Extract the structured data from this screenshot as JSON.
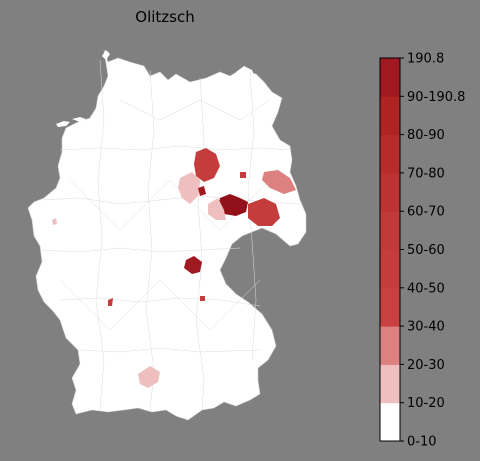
{
  "title": "Olitzsch",
  "legend": {
    "labels": [
      "0-10",
      "10-20",
      "20-30",
      "30-40",
      "40-50",
      "50-60",
      "60-70",
      "70-80",
      "80-90",
      "90-190.8",
      "190.8"
    ],
    "colors": [
      "#ffffff",
      "#efbfbf",
      "#dc8080",
      "#c84040",
      "#c43c3c",
      "#c13a3a",
      "#bd3333",
      "#b82b2b",
      "#b02323",
      "#a01820",
      "#92101a"
    ]
  },
  "map": {
    "land_color": "#ffffff",
    "boundary_color": "#d9d9d9",
    "background_color": "#808080",
    "highlighted_regions": [
      {
        "region": "north-brandenburg",
        "bin": "40-50"
      },
      {
        "region": "saxony-anhalt-west",
        "bin": "10-20"
      },
      {
        "region": "dessau",
        "bin": "90-190.8"
      },
      {
        "region": "leipzig-north",
        "bin": "90-190.8"
      },
      {
        "region": "halle-area",
        "bin": "10-20"
      },
      {
        "region": "dresden-area",
        "bin": "40-50"
      },
      {
        "region": "lower-silesia",
        "bin": "20-30"
      },
      {
        "region": "small-brandenburg-spot",
        "bin": "40-50"
      },
      {
        "region": "erfurt",
        "bin": "90-190.8"
      },
      {
        "region": "upper-franconia-spot",
        "bin": "40-50"
      },
      {
        "region": "karlsruhe-spot",
        "bin": "40-50"
      },
      {
        "region": "ulm-area",
        "bin": "10-20"
      },
      {
        "region": "saarland-spot",
        "bin": "10-20"
      }
    ]
  }
}
